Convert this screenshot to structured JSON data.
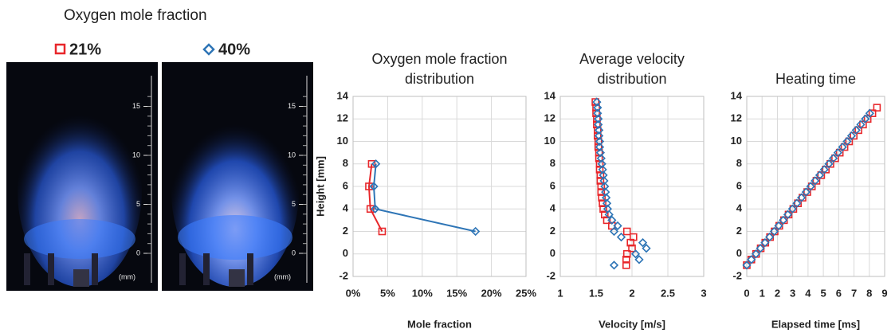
{
  "header": "Oxygen mole fraction",
  "photo_scale": {
    "ticks": [
      0,
      5,
      10,
      15
    ],
    "unit": "(mm)"
  },
  "chart_data": [
    {
      "type": "scatter",
      "title": [
        "Oxygen mole fraction",
        "distribution"
      ],
      "xlabel": "Mole fraction",
      "ylabel": "Height [mm]",
      "xlim": [
        0,
        25
      ],
      "xticks": [
        {
          "value": 0,
          "label": "0%"
        },
        {
          "value": 5,
          "label": "5%"
        },
        {
          "value": 10,
          "label": "10%"
        },
        {
          "value": 15,
          "label": "15%"
        },
        {
          "value": 20,
          "label": "20%"
        },
        {
          "value": 25,
          "label": "25%"
        }
      ],
      "ylim": [
        -2,
        14
      ],
      "yticks": [
        -2,
        0,
        2,
        4,
        6,
        8,
        10,
        12,
        14
      ],
      "grid": true,
      "lines": true,
      "series": [
        {
          "name": "21%",
          "color": "#e8272b",
          "marker": "square",
          "x": [
            2.7,
            2.3,
            2.5,
            4.2
          ],
          "values": [
            8,
            6,
            4,
            2
          ]
        },
        {
          "name": "40%",
          "color": "#2e75b6",
          "marker": "diamond",
          "x": [
            3.3,
            3.0,
            3.2,
            17.7
          ],
          "values": [
            8,
            6,
            4,
            2
          ]
        }
      ]
    },
    {
      "type": "scatter",
      "title": [
        "Average velocity",
        "distribution"
      ],
      "xlabel": "Velocity [m/s]",
      "xlim": [
        1,
        3
      ],
      "xticks": [
        1,
        1.5,
        2,
        2.5,
        3
      ],
      "ylim": [
        -2,
        14
      ],
      "yticks": [
        -2,
        0,
        2,
        4,
        6,
        8,
        10,
        12,
        14
      ],
      "grid": true,
      "lines": false,
      "series": [
        {
          "name": "21%",
          "color": "#e8272b",
          "marker": "square",
          "x": [
            1.49,
            1.5,
            1.5,
            1.51,
            1.51,
            1.52,
            1.52,
            1.53,
            1.53,
            1.54,
            1.54,
            1.55,
            1.55,
            1.56,
            1.56,
            1.57,
            1.57,
            1.58,
            1.59,
            1.6,
            1.62,
            1.65,
            1.72,
            1.93,
            2.02,
            1.98,
            2.0,
            1.93,
            1.92,
            1.92
          ],
          "values": [
            13.5,
            13,
            12.5,
            12,
            11.5,
            11,
            10.5,
            10,
            9.5,
            9,
            8.5,
            8,
            7.5,
            7,
            6.5,
            6,
            5.5,
            5,
            4.5,
            4,
            3.5,
            3,
            2.5,
            2,
            1.5,
            1,
            0.5,
            0,
            -0.5,
            -1
          ]
        },
        {
          "name": "40%",
          "color": "#2e75b6",
          "marker": "diamond",
          "x": [
            1.51,
            1.52,
            1.52,
            1.53,
            1.53,
            1.54,
            1.54,
            1.55,
            1.55,
            1.56,
            1.57,
            1.58,
            1.59,
            1.6,
            1.61,
            1.62,
            1.63,
            1.64,
            1.65,
            1.66,
            1.68,
            1.72,
            1.8,
            1.75,
            1.85,
            2.15,
            2.2,
            2.05,
            2.1,
            1.75
          ],
          "values": [
            13.5,
            13,
            12.5,
            12,
            11.5,
            11,
            10.5,
            10,
            9.5,
            9,
            8.5,
            8,
            7.5,
            7,
            6.5,
            6,
            5.5,
            5,
            4.5,
            4,
            3.5,
            3,
            2.5,
            2,
            1.5,
            1,
            0.5,
            0,
            -0.5,
            -1
          ]
        }
      ]
    },
    {
      "type": "scatter",
      "title": [
        "Heating time"
      ],
      "xlabel": "Elapsed time [ms]",
      "xlim": [
        0,
        9
      ],
      "xticks": [
        0,
        1,
        2,
        3,
        4,
        5,
        6,
        7,
        8,
        9
      ],
      "ylim": [
        -2,
        14
      ],
      "yticks": [
        -2,
        0,
        2,
        4,
        6,
        8,
        10,
        12,
        14
      ],
      "grid": true,
      "lines": false,
      "series": [
        {
          "name": "21%",
          "color": "#e8272b",
          "marker": "square",
          "x": [
            0,
            0.3,
            0.61,
            0.91,
            1.21,
            1.52,
            1.82,
            2.12,
            2.43,
            2.73,
            3.04,
            3.34,
            3.64,
            3.95,
            4.25,
            4.55,
            4.86,
            5.16,
            5.46,
            5.77,
            6.07,
            6.38,
            6.68,
            6.98,
            7.29,
            7.59,
            7.89,
            8.2,
            8.5
          ],
          "values": [
            -1,
            -0.5,
            0,
            0.5,
            1,
            1.5,
            2,
            2.5,
            3,
            3.5,
            4,
            4.5,
            5,
            5.5,
            6,
            6.5,
            7,
            7.5,
            8,
            8.5,
            9,
            9.5,
            10,
            10.5,
            11,
            11.5,
            12,
            12.5,
            13
          ]
        },
        {
          "name": "40%",
          "color": "#2e75b6",
          "marker": "diamond",
          "x": [
            0,
            0.3,
            0.6,
            0.89,
            1.19,
            1.49,
            1.79,
            2.08,
            2.38,
            2.68,
            2.98,
            3.27,
            3.57,
            3.87,
            4.17,
            4.46,
            4.76,
            5.06,
            5.36,
            5.65,
            5.95,
            6.25,
            6.55,
            6.84,
            7.14,
            7.44,
            7.74,
            8.03
          ],
          "values": [
            -1,
            -0.5,
            0,
            0.5,
            1,
            1.5,
            2,
            2.5,
            3,
            3.5,
            4,
            4.5,
            5,
            5.5,
            6,
            6.5,
            7,
            7.5,
            8,
            8.5,
            9,
            9.5,
            10,
            10.5,
            11,
            11.5,
            12,
            12.5
          ]
        }
      ]
    }
  ]
}
